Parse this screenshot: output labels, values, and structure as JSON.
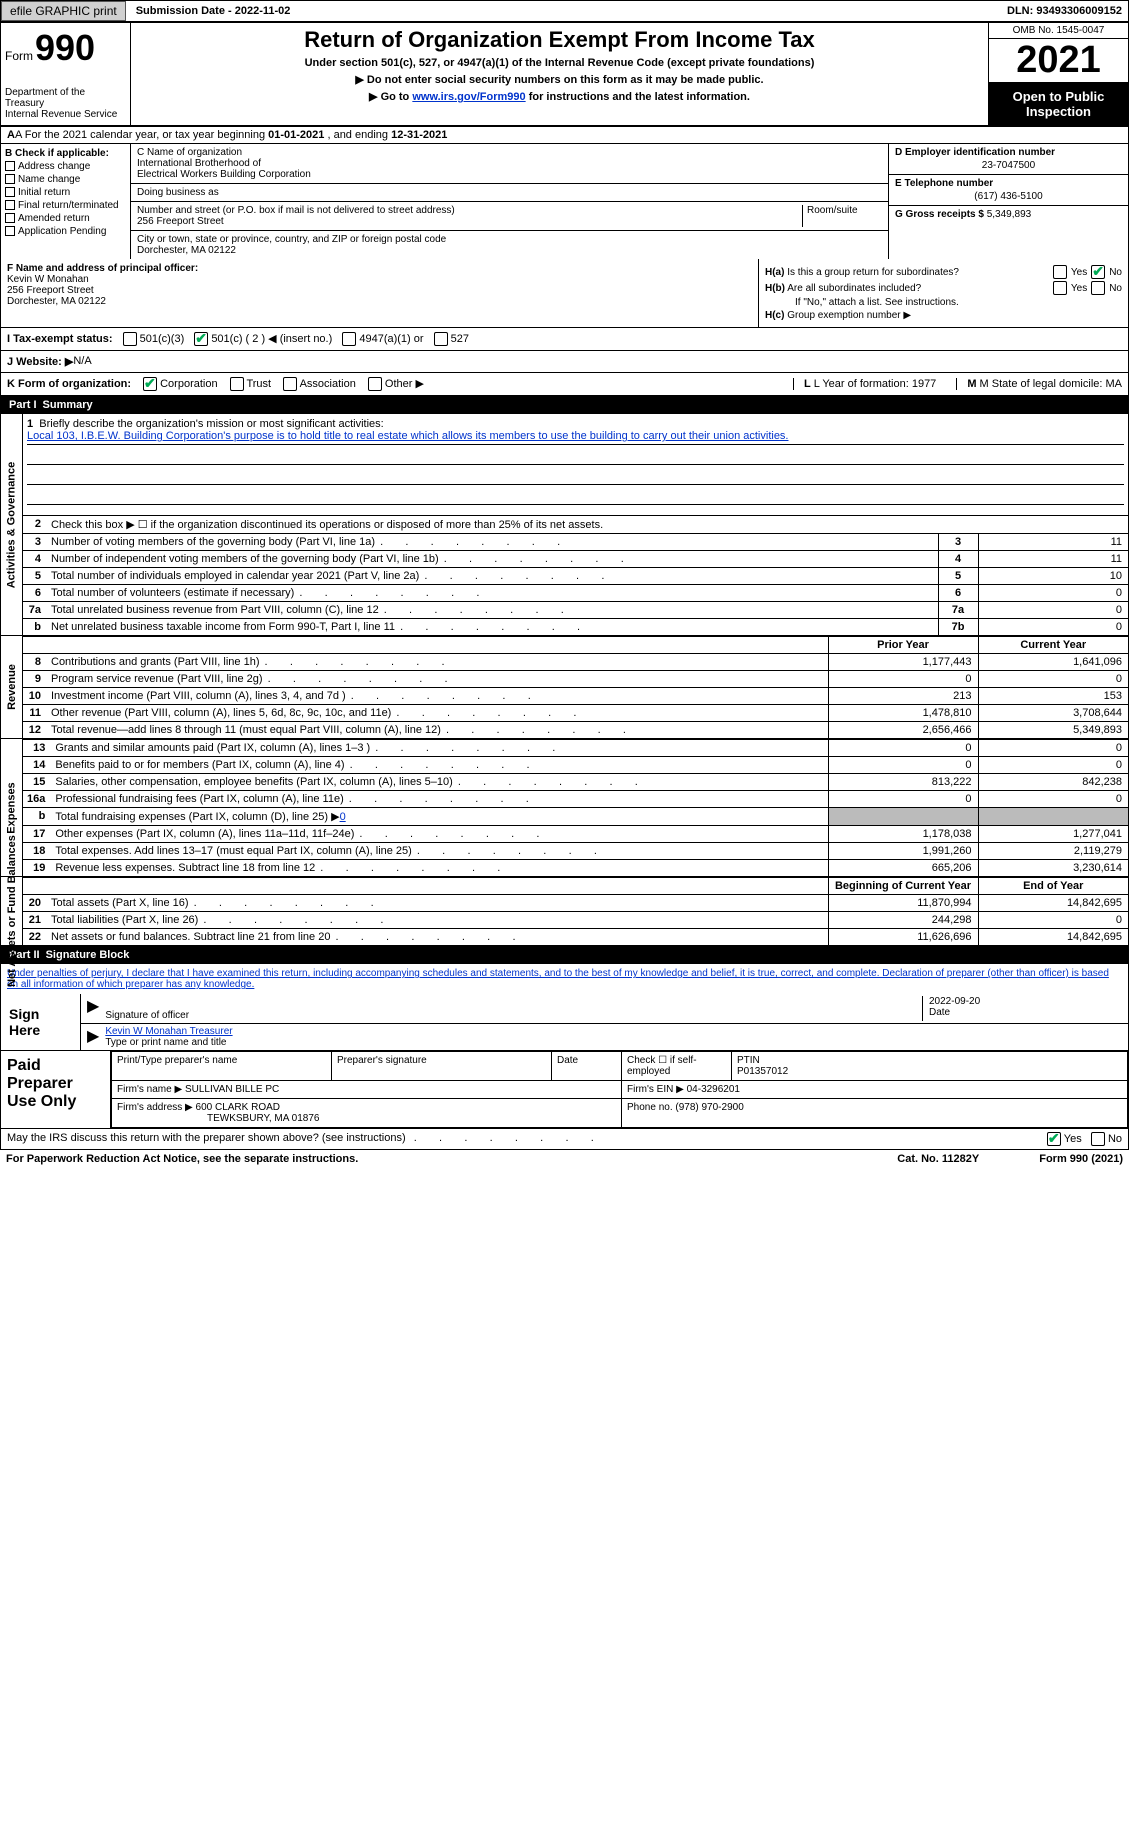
{
  "topbar": {
    "efile": "efile GRAPHIC print",
    "subdate_label": "Submission Date - ",
    "subdate": "2022-11-02",
    "dln_label": "DLN: ",
    "dln": "93493306009152"
  },
  "header": {
    "form_word": "Form",
    "form_num": "990",
    "dept": "Department of the Treasury\nInternal Revenue Service",
    "title": "Return of Organization Exempt From Income Tax",
    "subtitle": "Under section 501(c), 527, or 4947(a)(1) of the Internal Revenue Code (except private foundations)",
    "note1": "▶ Do not enter social security numbers on this form as it may be made public.",
    "note2_prefix": "▶ Go to ",
    "note2_link": "www.irs.gov/Form990",
    "note2_suffix": " for instructions and the latest information.",
    "omb": "OMB No. 1545-0047",
    "year": "2021",
    "open": "Open to Public Inspection"
  },
  "rowA": {
    "prefix": "A For the 2021 calendar year, or tax year beginning ",
    "begin": "01-01-2021",
    "mid": " , and ending ",
    "end": "12-31-2021"
  },
  "colB": {
    "title": "B Check if applicable:",
    "items": [
      "Address change",
      "Name change",
      "Initial return",
      "Final return/terminated",
      "Amended return",
      "Application Pending"
    ]
  },
  "colC": {
    "c_label": "C Name of organization",
    "c_name": "International Brotherhood of\nElectrical Workers Building Corporation",
    "dba_label": "Doing business as",
    "dba": "",
    "street_label": "Number and street (or P.O. box if mail is not delivered to street address)",
    "room_label": "Room/suite",
    "street": "256 Freeport Street",
    "city_label": "City or town, state or province, country, and ZIP or foreign postal code",
    "city": "Dorchester, MA  02122"
  },
  "colD": {
    "ein_label": "D Employer identification number",
    "ein": "23-7047500",
    "phone_label": "E Telephone number",
    "phone": "(617) 436-5100",
    "gross_label": "G Gross receipts $ ",
    "gross": "5,349,893"
  },
  "colF": {
    "label": "F Name and address of principal officer:",
    "name": "Kevin W Monahan",
    "addr1": "256 Freeport Street",
    "addr2": "Dorchester, MA  02122"
  },
  "colH": {
    "ha_label": "H(a)  Is this a group return for subordinates?",
    "hb_label": "H(b)  Are all subordinates included?",
    "hb_note": "If \"No,\" attach a list. See instructions.",
    "hc_label": "H(c)  Group exemption number ▶",
    "yes": "Yes",
    "no": "No"
  },
  "rowI": {
    "label": "I  Tax-exempt status:",
    "opt1": "501(c)(3)",
    "opt2_pre": "501(c) ( ",
    "opt2_num": "2",
    "opt2_post": " ) ◀ (insert no.)",
    "opt3": "4947(a)(1) or",
    "opt4": "527"
  },
  "rowJ": {
    "label": "J  Website: ▶",
    "val": "  N/A"
  },
  "rowK": {
    "klabel": "K Form of organization:",
    "opts": [
      "Corporation",
      "Trust",
      "Association",
      "Other ▶"
    ],
    "L_label": "L Year of formation: ",
    "L_val": "1977",
    "M_label": "M State of legal domicile: ",
    "M_val": "MA"
  },
  "partI": {
    "num": "Part I",
    "title": "Summary"
  },
  "brief": {
    "num": "1",
    "label": "Briefly describe the organization's mission or most significant activities:",
    "text": "Local 103, I.B.E.W. Building Corporation's purpose is to hold title to real estate which allows its members to use the building to carry out their union activities."
  },
  "line2": {
    "num": "2",
    "text": "Check this box ▶ ☐ if the organization discontinued its operations or disposed of more than 25% of its net assets."
  },
  "govRows": [
    {
      "n": "3",
      "d": "Number of voting members of the governing body (Part VI, line 1a)",
      "b": "3",
      "v": "11"
    },
    {
      "n": "4",
      "d": "Number of independent voting members of the governing body (Part VI, line 1b)",
      "b": "4",
      "v": "11"
    },
    {
      "n": "5",
      "d": "Total number of individuals employed in calendar year 2021 (Part V, line 2a)",
      "b": "5",
      "v": "10"
    },
    {
      "n": "6",
      "d": "Total number of volunteers (estimate if necessary)",
      "b": "6",
      "v": "0"
    },
    {
      "n": "7a",
      "d": "Total unrelated business revenue from Part VIII, column (C), line 12",
      "b": "7a",
      "v": "0"
    },
    {
      "n": "b",
      "d": "Net unrelated business taxable income from Form 990-T, Part I, line 11",
      "b": "7b",
      "v": "0"
    }
  ],
  "colHdr": {
    "prior": "Prior Year",
    "current": "Current Year"
  },
  "revRows": [
    {
      "n": "8",
      "d": "Contributions and grants (Part VIII, line 1h)",
      "p": "1,177,443",
      "c": "1,641,096"
    },
    {
      "n": "9",
      "d": "Program service revenue (Part VIII, line 2g)",
      "p": "0",
      "c": "0"
    },
    {
      "n": "10",
      "d": "Investment income (Part VIII, column (A), lines 3, 4, and 7d )",
      "p": "213",
      "c": "153"
    },
    {
      "n": "11",
      "d": "Other revenue (Part VIII, column (A), lines 5, 6d, 8c, 9c, 10c, and 11e)",
      "p": "1,478,810",
      "c": "3,708,644"
    },
    {
      "n": "12",
      "d": "Total revenue—add lines 8 through 11 (must equal Part VIII, column (A), line 12)",
      "p": "2,656,466",
      "c": "5,349,893"
    }
  ],
  "expRows": [
    {
      "n": "13",
      "d": "Grants and similar amounts paid (Part IX, column (A), lines 1–3 )",
      "p": "0",
      "c": "0"
    },
    {
      "n": "14",
      "d": "Benefits paid to or for members (Part IX, column (A), line 4)",
      "p": "0",
      "c": "0"
    },
    {
      "n": "15",
      "d": "Salaries, other compensation, employee benefits (Part IX, column (A), lines 5–10)",
      "p": "813,222",
      "c": "842,238"
    },
    {
      "n": "16a",
      "d": "Professional fundraising fees (Part IX, column (A), line 11e)",
      "p": "0",
      "c": "0"
    },
    {
      "n": "b",
      "d": "Total fundraising expenses (Part IX, column (D), line 25) ▶",
      "p": "grey",
      "c": "grey",
      "link": "0"
    },
    {
      "n": "17",
      "d": "Other expenses (Part IX, column (A), lines 11a–11d, 11f–24e)",
      "p": "1,178,038",
      "c": "1,277,041"
    },
    {
      "n": "18",
      "d": "Total expenses. Add lines 13–17 (must equal Part IX, column (A), line 25)",
      "p": "1,991,260",
      "c": "2,119,279"
    },
    {
      "n": "19",
      "d": "Revenue less expenses. Subtract line 18 from line 12",
      "p": "665,206",
      "c": "3,230,614"
    }
  ],
  "netHdr": {
    "begin": "Beginning of Current Year",
    "end": "End of Year"
  },
  "netRows": [
    {
      "n": "20",
      "d": "Total assets (Part X, line 16)",
      "p": "11,870,994",
      "c": "14,842,695"
    },
    {
      "n": "21",
      "d": "Total liabilities (Part X, line 26)",
      "p": "244,298",
      "c": "0"
    },
    {
      "n": "22",
      "d": "Net assets or fund balances. Subtract line 21 from line 20",
      "p": "11,626,696",
      "c": "14,842,695"
    }
  ],
  "tabs": {
    "gov": "Activities & Governance",
    "rev": "Revenue",
    "exp": "Expenses",
    "net": "Net Assets or Fund Balances"
  },
  "partII": {
    "num": "Part II",
    "title": "Signature Block",
    "decl": "Under penalties of perjury, I declare that I have examined this return, including accompanying schedules and statements, and to the best of my knowledge and belief, it is true, correct, and complete. Declaration of preparer (other than officer) is based on all information of which preparer has any knowledge."
  },
  "sign": {
    "here": "Sign Here",
    "sig_label": "Signature of officer",
    "date": "2022-09-20",
    "date_label": "Date",
    "name": "Kevin W Monahan  Treasurer",
    "name_label": "Type or print name and title"
  },
  "paid": {
    "title": "Paid Preparer Use Only",
    "h1": "Print/Type preparer's name",
    "h2": "Preparer's signature",
    "h3": "Date",
    "h4_pre": "Check ☐ if self-employed",
    "h5": "PTIN",
    "ptin": "P01357012",
    "firm_label": "Firm's name    ▶ ",
    "firm": "SULLIVAN BILLE PC",
    "ein_label": "Firm's EIN ▶ ",
    "ein": "04-3296201",
    "addr_label": "Firm's address ▶ ",
    "addr1": "600 CLARK ROAD",
    "addr2": "TEWKSBURY, MA  01876",
    "phone_label": "Phone no. ",
    "phone": "(978) 970-2900"
  },
  "footer": {
    "irs_q": "May the IRS discuss this return with the preparer shown above? (see instructions)",
    "yes": "Yes",
    "no": "No",
    "pra": "For Paperwork Reduction Act Notice, see the separate instructions.",
    "cat": "Cat. No. 11282Y",
    "form": "Form 990 (2021)"
  }
}
